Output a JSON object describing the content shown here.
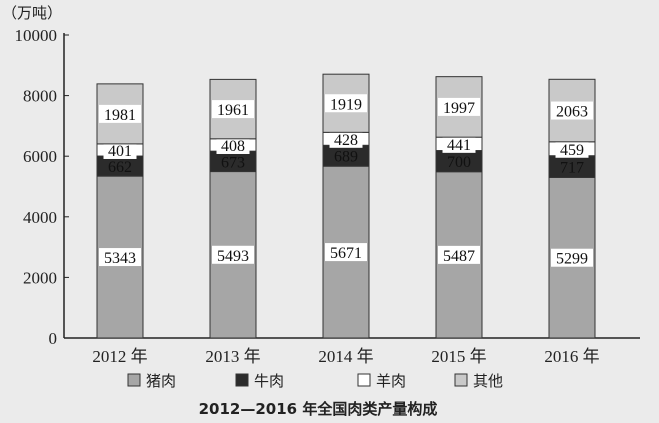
{
  "chart_data": {
    "type": "bar",
    "stacked": true,
    "title": "2012—2016 年全国肉类产量构成",
    "ylabel": "（万吨）",
    "xlabel": "",
    "ylim": [
      0,
      10000
    ],
    "yticks": [
      0,
      2000,
      4000,
      6000,
      8000,
      10000
    ],
    "categories": [
      "2012 年",
      "2013 年",
      "2014 年",
      "2015 年",
      "2016 年"
    ],
    "series": [
      {
        "name": "猪肉",
        "values": [
          5343,
          5493,
          5671,
          5487,
          5299
        ],
        "color": "#a6a6a6",
        "label_color": "#111111"
      },
      {
        "name": "牛肉",
        "values": [
          662,
          673,
          689,
          700,
          717
        ],
        "color": "#2b2b2b",
        "label_color": "#ffffff"
      },
      {
        "name": "羊肉",
        "values": [
          401,
          408,
          428,
          441,
          459
        ],
        "color": "#ffffff",
        "label_color": "#111111"
      },
      {
        "name": "其他",
        "values": [
          1981,
          1961,
          1919,
          1997,
          2063
        ],
        "color": "#c9c9c9",
        "label_color": "#111111"
      }
    ],
    "legend_position": "bottom",
    "grid": false
  }
}
